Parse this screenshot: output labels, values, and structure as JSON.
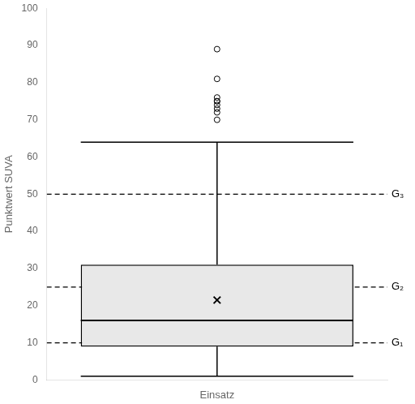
{
  "chart_data": {
    "type": "box",
    "categories": [
      "Einsatz"
    ],
    "ylabel": "Punktwert SUVA",
    "ylim": [
      0,
      100
    ],
    "yticks": [
      0,
      10,
      20,
      30,
      40,
      50,
      60,
      70,
      80,
      90,
      100
    ],
    "q1": 9,
    "median": 16,
    "q3": 31,
    "mean": 21.5,
    "whisker_low": 1,
    "whisker_high": 64,
    "outliers": [
      70,
      72,
      73,
      74,
      75,
      75,
      76,
      81,
      89
    ],
    "reference_lines": [
      {
        "y": 10,
        "label": "G₁"
      },
      {
        "y": 25,
        "label": "G₂"
      },
      {
        "y": 50,
        "label": "G₃"
      }
    ],
    "line_style": "dashed",
    "color": "#e8e8e8",
    "grid": false
  }
}
